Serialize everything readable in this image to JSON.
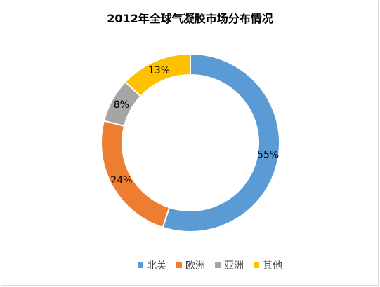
{
  "chart_data": {
    "type": "pie",
    "variant": "donut",
    "title": "2012年全球气凝胶市场分布情况",
    "categories": [
      "北美",
      "欧洲",
      "亚洲",
      "其他"
    ],
    "values": [
      55,
      24,
      8,
      13
    ],
    "labels": [
      "55%",
      "24%",
      "8%",
      "13%"
    ],
    "colors": [
      "#5B9BD5",
      "#ED7D31",
      "#A5A5A5",
      "#FFC000"
    ],
    "legend_position": "bottom",
    "start_angle": "top, clockwise"
  }
}
